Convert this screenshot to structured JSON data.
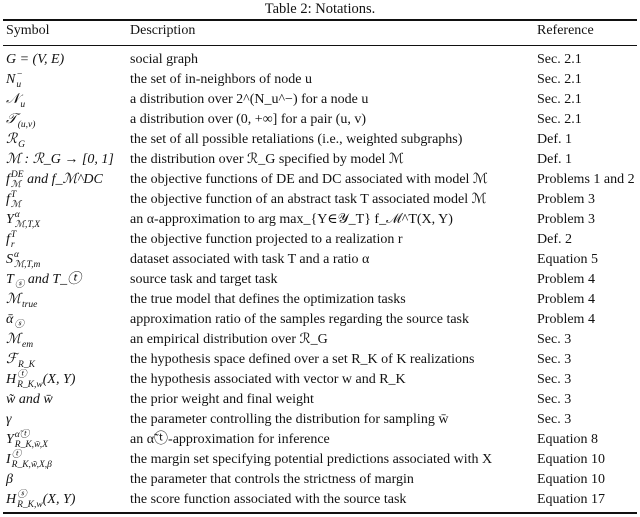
{
  "caption": "Table 2: Notations.",
  "headers": {
    "symbol": "Symbol",
    "description": "Description",
    "reference": "Reference"
  },
  "rows": [
    {
      "main": "G = (V, E)",
      "sup": "",
      "sub": "",
      "tail": "",
      "description": "social graph",
      "reference": "Sec. 2.1"
    },
    {
      "main": "N",
      "sup": "−",
      "sub": "u",
      "tail": "",
      "description": "the set of in-neighbors of node u",
      "reference": "Sec. 2.1"
    },
    {
      "main": "𝒩",
      "sup": "",
      "sub": "u",
      "tail": "",
      "description": "a distribution over 2^(N_u^−) for a node u",
      "reference": "Sec. 2.1"
    },
    {
      "main": "𝒯",
      "sup": "",
      "sub": "(u,v)",
      "tail": "",
      "description": "a distribution over (0, +∞] for a pair (u, v)",
      "reference": "Sec. 2.1"
    },
    {
      "main": "ℛ",
      "sup": "",
      "sub": "G",
      "tail": "",
      "description": "the set of all possible retaliations (i.e., weighted subgraphs)",
      "reference": "Def. 1"
    },
    {
      "main": "ℳ : ℛ_G → [0, 1]",
      "sup": "",
      "sub": "",
      "tail": "",
      "description": "the distribution over ℛ_G specified by model ℳ",
      "reference": "Def. 1"
    },
    {
      "main": "f",
      "sup": "DE",
      "sub": "ℳ",
      "tail": " and f_ℳ^DC",
      "description": "the objective functions of DE and DC associated with model ℳ",
      "reference": "Problems 1 and 2"
    },
    {
      "main": "f",
      "sup": "T",
      "sub": "ℳ",
      "tail": "",
      "description": "the objective function of an abstract task T associated model ℳ",
      "reference": "Problem 3"
    },
    {
      "main": "Y",
      "sup": "α",
      "sub": "ℳ,T,X",
      "tail": "",
      "description": "an α-approximation to arg max_{Y∈𝒴_T} f_ℳ^T(X, Y)",
      "reference": "Problem 3"
    },
    {
      "main": "f",
      "sup": "T",
      "sub": "r",
      "tail": "",
      "description": "the objective function projected to a realization r",
      "reference": "Def. 2"
    },
    {
      "main": "S",
      "sup": "α",
      "sub": "ℳ,T,m",
      "tail": "",
      "description": "dataset associated with task T and a ratio α",
      "reference": "Equation 5"
    },
    {
      "main": "T",
      "sup": "",
      "sub": "ⓢ",
      "tail": " and T_ⓣ",
      "description": "source task and target task",
      "reference": "Problem 4"
    },
    {
      "main": "ℳ",
      "sup": "",
      "sub": "true",
      "tail": "",
      "description": "the true model that defines the optimization tasks",
      "reference": "Problem 4"
    },
    {
      "main": "ᾱ",
      "sup": "",
      "sub": "ⓢ",
      "tail": "",
      "description": "approximation ratio of the samples regarding the source task",
      "reference": "Problem 4"
    },
    {
      "main": "ℳ",
      "sup": "",
      "sub": "em",
      "tail": "",
      "description": "an empirical distribution over ℛ_G",
      "reference": "Sec. 3"
    },
    {
      "main": "ℱ",
      "sup": "",
      "sub": "R_K",
      "tail": "",
      "description": "the hypothesis space defined over a set R_K of K realizations",
      "reference": "Sec. 3"
    },
    {
      "main": "H",
      "sup": "ⓣ",
      "sub": "R_K,w",
      "tail": "(X, Y)",
      "description": "the hypothesis associated with vector w and R_K",
      "reference": "Sec. 3"
    },
    {
      "main": "w̃ and w̄",
      "sup": "",
      "sub": "",
      "tail": "",
      "description": "the prior weight and final weight",
      "reference": "Sec. 3"
    },
    {
      "main": "γ",
      "sup": "",
      "sub": "",
      "tail": "",
      "description": "the parameter controlling the distribution for sampling w̄",
      "reference": "Sec. 3"
    },
    {
      "main": "Y",
      "sup": "α̃ⓣ",
      "sub": "R_K,w̄,X",
      "tail": "",
      "description": "an α̃ⓣ-approximation for inference",
      "reference": "Equation 8"
    },
    {
      "main": "I",
      "sup": "ⓣ",
      "sub": "R_K,w̃,X,β",
      "tail": "",
      "description": "the margin set specifying potential predictions associated with X",
      "reference": "Equation 10"
    },
    {
      "main": "β",
      "sup": "",
      "sub": "",
      "tail": "",
      "description": "the parameter that controls the strictness of margin",
      "reference": "Equation 10"
    },
    {
      "main": "H",
      "sup": "ⓢ",
      "sub": "R_K,w",
      "tail": "(X, Y)",
      "description": "the score function associated with the source task",
      "reference": "Equation 17"
    }
  ]
}
